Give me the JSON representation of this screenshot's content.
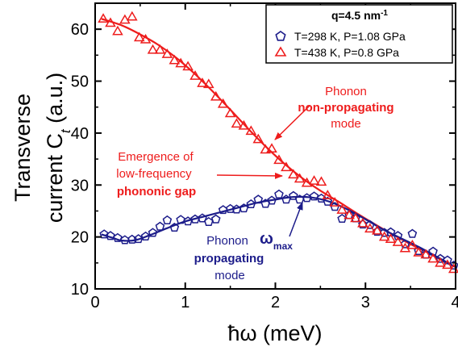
{
  "chart_data": {
    "type": "scatter",
    "xlabel": "ħω (meV)",
    "ylabel_line1": "Transverse",
    "ylabel_line2_prefix": "current C",
    "ylabel_line2_subscript": "t",
    "ylabel_line2_suffix": " (a.u.)",
    "xlim": [
      0,
      4
    ],
    "ylim": [
      10,
      65
    ],
    "x_ticks": [
      0,
      1,
      2,
      3,
      4
    ],
    "y_ticks": [
      10,
      20,
      30,
      40,
      50,
      60
    ],
    "legend": {
      "title": "q=4.5 nm",
      "title_superscript": "-1",
      "placement": "top-right",
      "entries": [
        {
          "label": "T=298 K, P=1.08 GPa",
          "marker": "pentagon",
          "color": "#1c1c8a"
        },
        {
          "label": "T=438 K, P=0.8 GPa",
          "marker": "triangle",
          "color": "#ee1c1c"
        }
      ]
    },
    "series": [
      {
        "name": "T=298 K, P=1.08 GPa",
        "color": "#1c1c8a",
        "marker": "pentagon",
        "x": [
          0.1,
          0.17,
          0.25,
          0.33,
          0.41,
          0.48,
          0.56,
          0.64,
          0.72,
          0.8,
          0.88,
          0.95,
          1.03,
          1.11,
          1.19,
          1.26,
          1.34,
          1.42,
          1.5,
          1.57,
          1.65,
          1.73,
          1.81,
          1.89,
          1.96,
          2.04,
          2.12,
          2.2,
          2.27,
          2.35,
          2.43,
          2.51,
          2.58,
          2.66,
          2.74,
          2.82,
          2.89,
          2.97,
          3.05,
          3.13,
          3.21,
          3.28,
          3.36,
          3.44,
          3.52,
          3.59,
          3.67,
          3.75,
          3.83,
          3.91,
          3.98
        ],
        "y": [
          20.5,
          20.2,
          19.8,
          19.4,
          19.5,
          19.6,
          20.1,
          20.8,
          22.0,
          23.2,
          21.8,
          23.3,
          23.0,
          23.4,
          23.6,
          22.9,
          23.4,
          25.2,
          25.4,
          25.3,
          25.5,
          26.3,
          27.2,
          26.4,
          27.0,
          28.2,
          27.2,
          27.9,
          27.2,
          27.5,
          27.8,
          27.4,
          26.8,
          25.8,
          23.5,
          24.2,
          23.6,
          22.4,
          22.3,
          21.0,
          20.8,
          20.9,
          20.2,
          18.6,
          20.6,
          17.3,
          16.6,
          17.2,
          15.8,
          15.5,
          14.5
        ]
      },
      {
        "name": "T=438 K, P=0.8 GPa",
        "color": "#ee1c1c",
        "marker": "triangle",
        "x": [
          0.09,
          0.17,
          0.25,
          0.33,
          0.41,
          0.49,
          0.56,
          0.64,
          0.72,
          0.8,
          0.88,
          0.95,
          1.03,
          1.11,
          1.19,
          1.26,
          1.34,
          1.42,
          1.5,
          1.57,
          1.65,
          1.73,
          1.81,
          1.89,
          1.96,
          2.04,
          2.12,
          2.2,
          2.27,
          2.35,
          2.43,
          2.51,
          2.58,
          2.66,
          2.74,
          2.82,
          2.89,
          2.97,
          3.05,
          3.13,
          3.21,
          3.28,
          3.36,
          3.44,
          3.52,
          3.59,
          3.67,
          3.75,
          3.83,
          3.91,
          3.98
        ],
        "y": [
          62.0,
          61.2,
          59.6,
          61.8,
          62.4,
          58.4,
          58.0,
          56.0,
          56.0,
          55.2,
          54.0,
          53.4,
          52.8,
          51.0,
          49.6,
          49.4,
          47.0,
          45.6,
          43.8,
          41.8,
          41.4,
          40.4,
          38.8,
          36.8,
          37.0,
          34.8,
          33.4,
          32.0,
          31.2,
          30.4,
          30.8,
          30.6,
          28.0,
          26.6,
          25.2,
          24.2,
          23.6,
          22.6,
          21.6,
          21.2,
          20.0,
          19.6,
          19.0,
          17.8,
          18.4,
          17.0,
          16.6,
          15.8,
          15.0,
          14.6,
          13.8
        ]
      }
    ],
    "fit_lines": [
      {
        "color": "#ee1c1c",
        "x": [
          0.07,
          0.3,
          0.5,
          0.7,
          0.9,
          1.1,
          1.3,
          1.5,
          1.7,
          1.9,
          2.1,
          2.3,
          2.5,
          2.7,
          2.9,
          3.1,
          3.3,
          3.5,
          3.7,
          3.9,
          4.0
        ],
        "y": [
          62.0,
          60.7,
          59.0,
          57.0,
          54.5,
          51.5,
          48.1,
          44.5,
          40.8,
          37.3,
          34.1,
          31.3,
          28.9,
          26.8,
          24.6,
          22.5,
          20.5,
          18.6,
          16.9,
          15.0,
          14.2
        ]
      },
      {
        "color": "#1c1c8a",
        "x": [
          0.07,
          0.2,
          0.3,
          0.45,
          0.6,
          0.8,
          1.0,
          1.2,
          1.4,
          1.6,
          1.8,
          2.0,
          2.2,
          2.4,
          2.6,
          2.8,
          3.0,
          3.2,
          3.4,
          3.6,
          3.8,
          4.0
        ],
        "y": [
          20.5,
          19.8,
          19.3,
          19.4,
          20.3,
          21.7,
          23.0,
          23.9,
          24.8,
          25.7,
          26.6,
          27.2,
          27.7,
          27.6,
          26.8,
          25.3,
          23.4,
          21.4,
          19.7,
          18.0,
          16.1,
          14.2
        ]
      }
    ],
    "annotations": {
      "phonon_top": "Phonon",
      "non_propagating": "non-propagating",
      "mode_top": "mode",
      "emergence": "Emergence of",
      "low_frequency": "low-frequency",
      "phononic_gap": "phononic gap",
      "phonon_bottom": "Phonon",
      "omega_max_symbol": "ω",
      "omega_max_sub": "max",
      "propagating": "propagating",
      "mode_bottom": "mode"
    }
  }
}
